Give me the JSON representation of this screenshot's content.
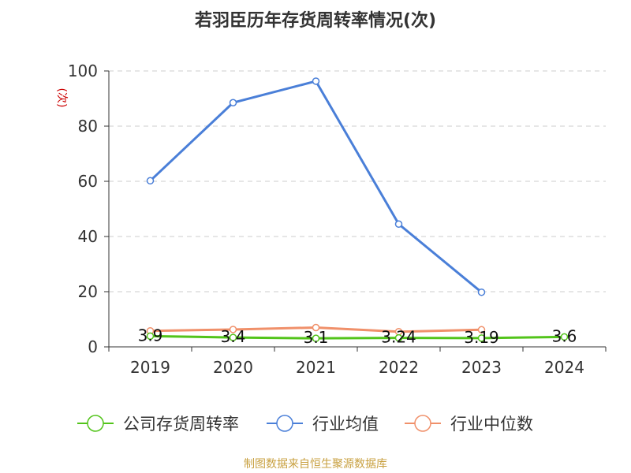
{
  "chart_data": {
    "type": "line",
    "title": "若羽臣历年存货周转率情况(次)",
    "ylabel": "(次)",
    "categories": [
      "2019",
      "2020",
      "2021",
      "2022",
      "2023",
      "2024"
    ],
    "ylim": [
      0,
      100
    ],
    "yticks": [
      0,
      20,
      40,
      60,
      80,
      100
    ],
    "grid": true,
    "legend_position": "bottom",
    "series": [
      {
        "name": "公司存货周转率",
        "values": [
          3.9,
          3.4,
          3.1,
          3.24,
          3.19,
          3.6
        ],
        "labels": [
          "3.9",
          "3.4",
          "3.1",
          "3.24",
          "3.19",
          "3.6"
        ],
        "color": "#52c41a"
      },
      {
        "name": "行业均值",
        "values": [
          60.2,
          88.5,
          96.3,
          44.5,
          19.8,
          null
        ],
        "color": "#4a7fd8"
      },
      {
        "name": "行业中位数",
        "values": [
          5.8,
          6.3,
          7.0,
          5.5,
          6.2,
          null
        ],
        "color": "#f0906a"
      }
    ]
  },
  "source_note": "制图数据来自恒生聚源数据库"
}
